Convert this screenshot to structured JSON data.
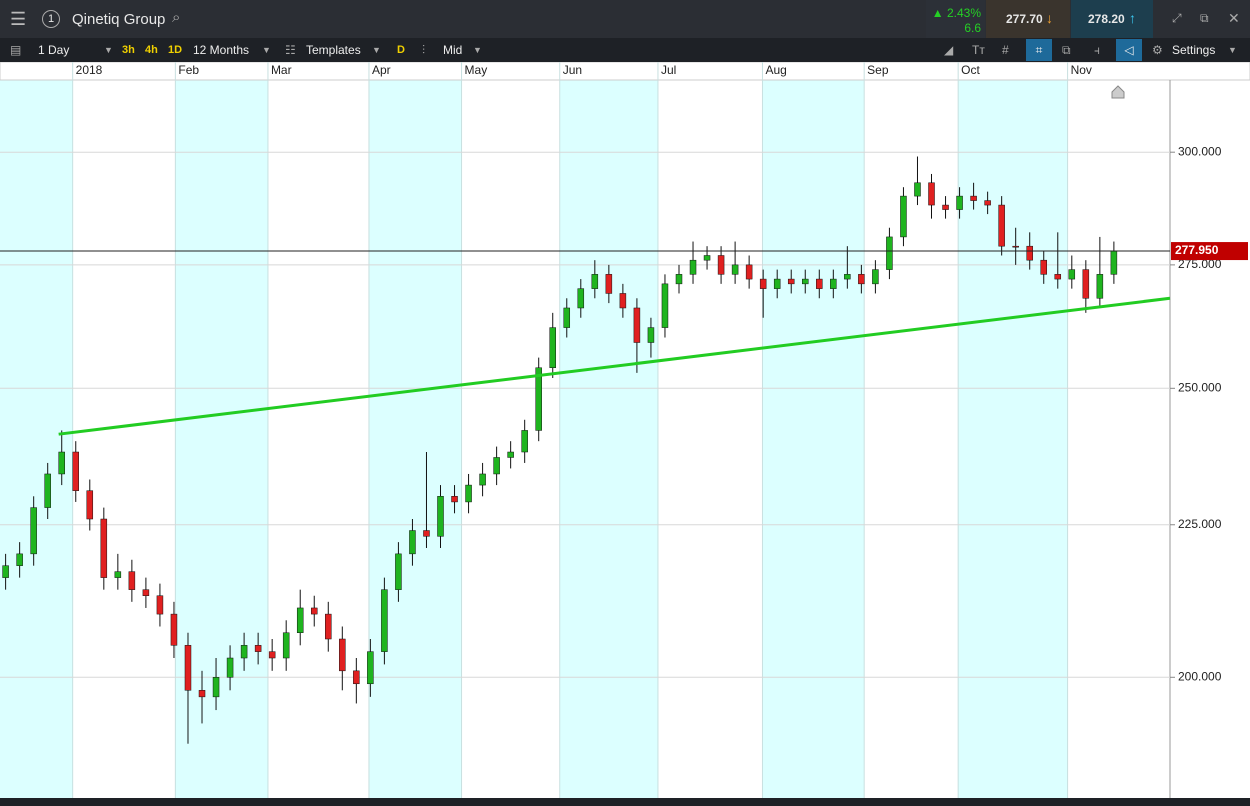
{
  "ui": {
    "instrument": "Qinetiq Group",
    "change_pct": "2.43%",
    "change_abs": "6.6",
    "sell_price": "277.70",
    "buy_price": "278.20",
    "interval": "1 Day",
    "quick_intervals": [
      "3h",
      "4h",
      "1D"
    ],
    "range": "12 Months",
    "templates": "Templates",
    "drawing_mode": "D",
    "price_type": "Mid",
    "settings": "Settings"
  },
  "chart_data": {
    "type": "candlestick",
    "log_y": true,
    "grid": true,
    "up_color": "#1fb41f",
    "down_color": "#e02020",
    "x": [
      0,
      1,
      2,
      3,
      4,
      5,
      6,
      7,
      8,
      9,
      10,
      11,
      12,
      13,
      14,
      15,
      16,
      17,
      18,
      19,
      20,
      21,
      22,
      23,
      24,
      25,
      26,
      27,
      28,
      29,
      30,
      31,
      32,
      33,
      34,
      35,
      36,
      37,
      38,
      39,
      40,
      41,
      42,
      43,
      44,
      45,
      46,
      47,
      48,
      49,
      50,
      51,
      52,
      53,
      54,
      55,
      56,
      57,
      58,
      59,
      60,
      61,
      62,
      63,
      64,
      65,
      66,
      67,
      68,
      69,
      70,
      71,
      72,
      73,
      74,
      75,
      76,
      77,
      78,
      79
    ],
    "open": [
      216,
      218,
      220,
      228,
      234,
      238,
      231,
      226,
      216,
      217,
      214,
      213,
      210,
      205,
      198,
      197,
      200,
      203,
      205,
      204,
      203,
      207,
      211,
      210,
      206,
      201,
      199,
      204,
      214,
      220,
      224,
      223,
      230,
      229,
      232,
      234,
      237,
      238,
      242,
      254,
      262,
      266,
      270,
      273,
      269,
      266,
      259,
      262,
      271,
      273,
      276,
      277,
      273,
      275,
      272,
      270,
      272,
      271,
      272,
      270,
      272,
      273,
      271,
      274,
      281,
      290,
      293,
      288,
      287,
      290,
      289,
      288,
      279,
      279,
      276,
      273,
      272,
      274,
      268,
      273
    ],
    "high": [
      220,
      222,
      230,
      236,
      242,
      240,
      233,
      228,
      220,
      219,
      216,
      215,
      212,
      207,
      201,
      203,
      205,
      207,
      207,
      206,
      209,
      214,
      213,
      212,
      208,
      203,
      206,
      216,
      222,
      226,
      238,
      232,
      232,
      234,
      236,
      239,
      240,
      244,
      256,
      265,
      268,
      272,
      276,
      275,
      271,
      268,
      264,
      273,
      275,
      280,
      279,
      279,
      280,
      277,
      274,
      274,
      274,
      274,
      274,
      274,
      279,
      275,
      276,
      283,
      292,
      299,
      295,
      290,
      292,
      293,
      291,
      290,
      283,
      282,
      278,
      282,
      277,
      276,
      281,
      280
    ],
    "low": [
      214,
      216,
      218,
      226,
      232,
      229,
      224,
      214,
      214,
      212,
      211,
      208,
      203,
      190,
      193,
      195,
      198,
      201,
      202,
      201,
      201,
      205,
      208,
      204,
      198,
      196,
      197,
      202,
      212,
      218,
      221,
      221,
      227,
      227,
      230,
      232,
      235,
      236,
      240,
      252,
      260,
      264,
      268,
      267,
      264,
      253,
      256,
      260,
      269,
      271,
      274,
      271,
      271,
      270,
      264,
      268,
      269,
      269,
      268,
      268,
      270,
      269,
      269,
      272,
      279,
      288,
      285,
      285,
      285,
      287,
      286,
      277,
      275,
      274,
      271,
      270,
      270,
      265,
      266,
      271
    ],
    "close": [
      218,
      220,
      228,
      234,
      238,
      231,
      226,
      216,
      217,
      214,
      213,
      210,
      205,
      198,
      197,
      200,
      203,
      205,
      204,
      203,
      207,
      211,
      210,
      206,
      201,
      199,
      204,
      214,
      220,
      224,
      223,
      230,
      229,
      232,
      234,
      237,
      238,
      242,
      254,
      262,
      266,
      270,
      273,
      269,
      266,
      259,
      262,
      271,
      273,
      276,
      277,
      273,
      275,
      272,
      270,
      272,
      271,
      272,
      270,
      272,
      273,
      271,
      274,
      281,
      290,
      293,
      288,
      287,
      290,
      289,
      288,
      279,
      279,
      276,
      273,
      272,
      274,
      268,
      273,
      277.95
    ],
    "xlim": [
      -0.4,
      83
    ],
    "xticks": [
      {
        "value": 4.78,
        "label": "2018"
      },
      {
        "value": 12.1,
        "label": "Feb"
      },
      {
        "value": 18.7,
        "label": "Mar"
      },
      {
        "value": 25.9,
        "label": "Apr"
      },
      {
        "value": 32.5,
        "label": "May"
      },
      {
        "value": 39.5,
        "label": "Jun"
      },
      {
        "value": 46.5,
        "label": "Jul"
      },
      {
        "value": 53.95,
        "label": "Aug"
      },
      {
        "value": 61.2,
        "label": "Sep"
      },
      {
        "value": 67.9,
        "label": "Oct"
      },
      {
        "value": 75.7,
        "label": "Nov"
      }
    ],
    "ylim": [
      182.2,
      317.2
    ],
    "yticks": [
      {
        "value": 200,
        "label": "200.000"
      },
      {
        "value": 225,
        "label": "225.000"
      },
      {
        "value": 250,
        "label": "250.000"
      },
      {
        "value": 275,
        "label": "275.000"
      },
      {
        "value": 300,
        "label": "300.000"
      }
    ],
    "trendline": {
      "color": "#22cc22",
      "x": [
        3.78,
        83
      ],
      "values": [
        241.3,
        268.0
      ]
    },
    "last_price": {
      "value": 277.95,
      "label": "277.950",
      "color": "#c00000"
    }
  }
}
